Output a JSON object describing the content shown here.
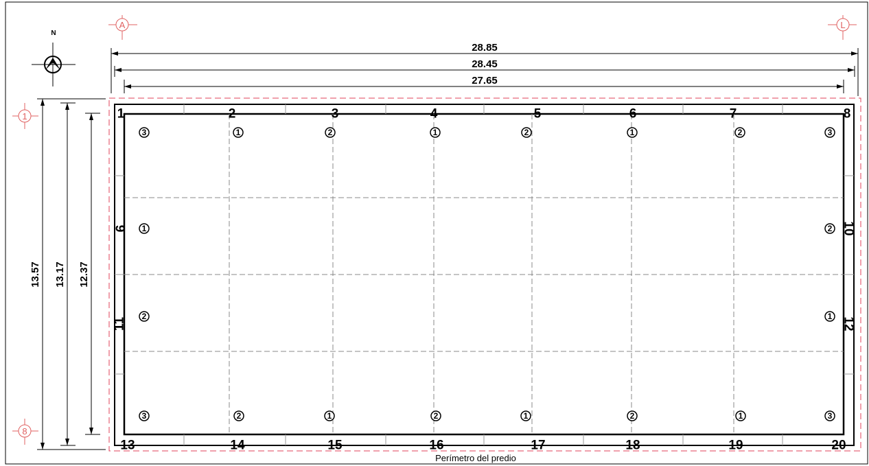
{
  "north_label": "N",
  "grid_axes": {
    "A": "A",
    "L": "L",
    "one": "1",
    "eight": "8"
  },
  "dimensions": {
    "width_outer": "28.85",
    "width_mid": "28.45",
    "width_inner": "27.65",
    "height_outer": "13.57",
    "height_mid": "13.17",
    "height_inner": "12.37"
  },
  "footer": "Perímetro del predio",
  "points": [
    {
      "n": "1",
      "v": "3"
    },
    {
      "n": "2",
      "v": "1"
    },
    {
      "n": "3",
      "v": "2"
    },
    {
      "n": "4",
      "v": "1"
    },
    {
      "n": "5",
      "v": "2"
    },
    {
      "n": "6",
      "v": "1"
    },
    {
      "n": "7",
      "v": "2"
    },
    {
      "n": "8",
      "v": "3"
    },
    {
      "n": "9",
      "v": "1"
    },
    {
      "n": "10",
      "v": "2"
    },
    {
      "n": "11",
      "v": "2"
    },
    {
      "n": "12",
      "v": "1"
    },
    {
      "n": "13",
      "v": "3"
    },
    {
      "n": "14",
      "v": "2"
    },
    {
      "n": "15",
      "v": "1"
    },
    {
      "n": "16",
      "v": "2"
    },
    {
      "n": "17",
      "v": "1"
    },
    {
      "n": "18",
      "v": "2"
    },
    {
      "n": "19",
      "v": "1"
    },
    {
      "n": "20",
      "v": "3"
    }
  ],
  "colors": {
    "line": "#000000",
    "perimeter": "#e0405a",
    "grid_axis": "#e06060",
    "dashed_grid": "#888888"
  }
}
